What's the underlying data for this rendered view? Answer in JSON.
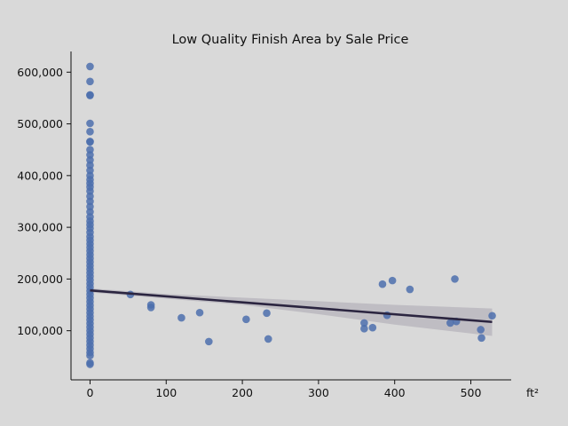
{
  "chart_data": {
    "type": "scatter",
    "title": "Low Quality Finish Area by Sale Price",
    "xlabel": "",
    "ylabel": "",
    "x_unit": "ft²",
    "xlim": [
      -25,
      553
    ],
    "ylim": [
      5000,
      640000
    ],
    "x_ticks": [
      0,
      100,
      200,
      300,
      400,
      500
    ],
    "x_tick_labels": [
      "0",
      "100",
      "200",
      "300",
      "400",
      "500"
    ],
    "y_ticks": [
      100000,
      200000,
      300000,
      400000,
      500000,
      600000
    ],
    "y_tick_labels": [
      "100,000",
      "200,000",
      "300,000",
      "400,000",
      "500,000",
      "600,000"
    ],
    "grid": false,
    "colors": {
      "points": "#4c6fad",
      "line": "#2b2540",
      "band": "#a9a5b1",
      "background": "#d9d9d9"
    },
    "regression": {
      "x": [
        0,
        528
      ],
      "y": [
        178000,
        117000
      ]
    },
    "confidence_band": {
      "x": [
        0,
        100,
        200,
        300,
        400,
        528
      ],
      "lower": [
        174000,
        162000,
        150000,
        132000,
        112000,
        90000
      ],
      "upper": [
        182000,
        171000,
        164000,
        157000,
        150000,
        143000
      ]
    },
    "points": [
      {
        "x": 0,
        "y": 611000
      },
      {
        "x": 0,
        "y": 582000
      },
      {
        "x": 0,
        "y": 556000
      },
      {
        "x": 0,
        "y": 555000
      },
      {
        "x": 0,
        "y": 501000
      },
      {
        "x": 0,
        "y": 485000
      },
      {
        "x": 0,
        "y": 466000
      },
      {
        "x": 0,
        "y": 465000
      },
      {
        "x": 0,
        "y": 450000
      },
      {
        "x": 0,
        "y": 440000
      },
      {
        "x": 0,
        "y": 430000
      },
      {
        "x": 0,
        "y": 420000
      },
      {
        "x": 0,
        "y": 410000
      },
      {
        "x": 0,
        "y": 400000
      },
      {
        "x": 0,
        "y": 392000
      },
      {
        "x": 0,
        "y": 385000
      },
      {
        "x": 0,
        "y": 378000
      },
      {
        "x": 0,
        "y": 370000
      },
      {
        "x": 0,
        "y": 360000
      },
      {
        "x": 0,
        "y": 350000
      },
      {
        "x": 0,
        "y": 340000
      },
      {
        "x": 0,
        "y": 330000
      },
      {
        "x": 0,
        "y": 320000
      },
      {
        "x": 0,
        "y": 312000
      },
      {
        "x": 0,
        "y": 305000
      },
      {
        "x": 0,
        "y": 298000
      },
      {
        "x": 0,
        "y": 290000
      },
      {
        "x": 0,
        "y": 282000
      },
      {
        "x": 0,
        "y": 275000
      },
      {
        "x": 0,
        "y": 268000
      },
      {
        "x": 0,
        "y": 261000
      },
      {
        "x": 0,
        "y": 254000
      },
      {
        "x": 0,
        "y": 247000
      },
      {
        "x": 0,
        "y": 240000
      },
      {
        "x": 0,
        "y": 233000
      },
      {
        "x": 0,
        "y": 226000
      },
      {
        "x": 0,
        "y": 219000
      },
      {
        "x": 0,
        "y": 212000
      },
      {
        "x": 0,
        "y": 205000
      },
      {
        "x": 0,
        "y": 198000
      },
      {
        "x": 0,
        "y": 191000
      },
      {
        "x": 0,
        "y": 184000
      },
      {
        "x": 0,
        "y": 177000
      },
      {
        "x": 0,
        "y": 170000
      },
      {
        "x": 0,
        "y": 163000
      },
      {
        "x": 0,
        "y": 156000
      },
      {
        "x": 0,
        "y": 149000
      },
      {
        "x": 0,
        "y": 142000
      },
      {
        "x": 0,
        "y": 135000
      },
      {
        "x": 0,
        "y": 128000
      },
      {
        "x": 0,
        "y": 121000
      },
      {
        "x": 0,
        "y": 114000
      },
      {
        "x": 0,
        "y": 107000
      },
      {
        "x": 0,
        "y": 100000
      },
      {
        "x": 0,
        "y": 93000
      },
      {
        "x": 0,
        "y": 86000
      },
      {
        "x": 0,
        "y": 79000
      },
      {
        "x": 0,
        "y": 72000
      },
      {
        "x": 0,
        "y": 65000
      },
      {
        "x": 0,
        "y": 58000
      },
      {
        "x": 0,
        "y": 52000
      },
      {
        "x": 0,
        "y": 38000
      },
      {
        "x": 0,
        "y": 35000
      },
      {
        "x": 53,
        "y": 170000
      },
      {
        "x": 80,
        "y": 150000
      },
      {
        "x": 80,
        "y": 145000
      },
      {
        "x": 120,
        "y": 125000
      },
      {
        "x": 144,
        "y": 135000
      },
      {
        "x": 156,
        "y": 79000
      },
      {
        "x": 205,
        "y": 122000
      },
      {
        "x": 232,
        "y": 134000
      },
      {
        "x": 234,
        "y": 84000
      },
      {
        "x": 360,
        "y": 115000
      },
      {
        "x": 360,
        "y": 104000
      },
      {
        "x": 371,
        "y": 106000
      },
      {
        "x": 384,
        "y": 190000
      },
      {
        "x": 390,
        "y": 130000
      },
      {
        "x": 397,
        "y": 197000
      },
      {
        "x": 420,
        "y": 180000
      },
      {
        "x": 473,
        "y": 115000
      },
      {
        "x": 479,
        "y": 200000
      },
      {
        "x": 481,
        "y": 118000
      },
      {
        "x": 513,
        "y": 102000
      },
      {
        "x": 514,
        "y": 86000
      },
      {
        "x": 528,
        "y": 129000
      }
    ]
  }
}
